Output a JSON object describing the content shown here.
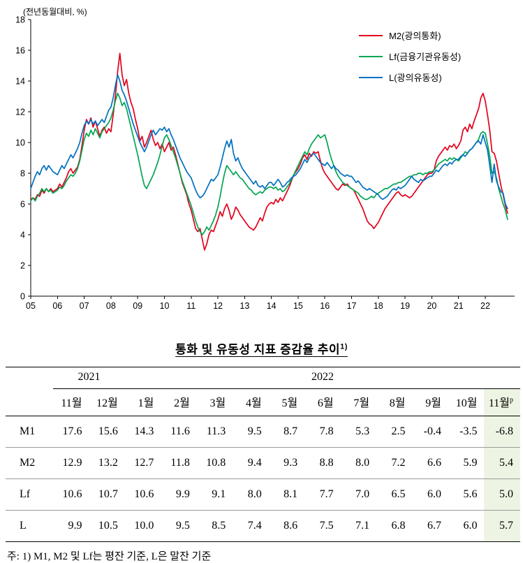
{
  "chart_data": {
    "type": "line",
    "title": "",
    "unit_label": "(전년동월대비, %)",
    "xlabel": "",
    "ylabel": "",
    "ylim": [
      0,
      18
    ],
    "y_ticks": [
      0,
      2,
      4,
      6,
      8,
      10,
      12,
      14,
      16,
      18
    ],
    "x_tick_labels": [
      "05",
      "06",
      "07",
      "08",
      "09",
      "10",
      "11",
      "12",
      "13",
      "14",
      "15",
      "16",
      "17",
      "18",
      "19",
      "20",
      "21",
      "22"
    ],
    "x_start_year": 2005,
    "points_per_year": 12,
    "grid": false,
    "legend_position": "top-right",
    "series": [
      {
        "name": "M2(광의통화)",
        "color": "#e2001a",
        "values": [
          6.3,
          6.4,
          6.3,
          6.6,
          6.5,
          6.9,
          6.7,
          7.0,
          6.8,
          7.0,
          6.8,
          6.9,
          7.0,
          7.3,
          7.1,
          7.4,
          7.7,
          8.1,
          8.3,
          8.0,
          8.2,
          8.4,
          8.9,
          9.8,
          10.8,
          11.5,
          11.2,
          11.6,
          11.0,
          11.4,
          10.9,
          10.4,
          10.8,
          11.0,
          10.6,
          10.9,
          10.7,
          11.8,
          13.0,
          14.6,
          15.8,
          14.4,
          13.7,
          14.1,
          13.2,
          12.6,
          12.2,
          11.5,
          10.9,
          10.1,
          10.4,
          9.7,
          10.0,
          10.4,
          10.8,
          10.2,
          9.8,
          10.0,
          9.6,
          9.9,
          9.4,
          9.7,
          10.0,
          9.5,
          9.7,
          9.2,
          8.6,
          8.0,
          7.4,
          7.0,
          6.6,
          6.0,
          5.6,
          5.0,
          4.4,
          4.2,
          4.4,
          3.7,
          3.0,
          3.4,
          4.0,
          4.3,
          4.2,
          4.6,
          5.0,
          5.5,
          5.2,
          5.7,
          6.0,
          5.6,
          5.0,
          5.3,
          5.8,
          5.6,
          5.3,
          5.1,
          4.9,
          4.7,
          4.5,
          4.4,
          4.3,
          4.5,
          4.8,
          5.1,
          4.9,
          5.4,
          5.8,
          6.0,
          6.1,
          6.0,
          6.3,
          6.1,
          6.4,
          6.2,
          6.5,
          6.8,
          7.1,
          7.5,
          7.9,
          8.1,
          8.3,
          8.6,
          9.0,
          9.2,
          8.9,
          9.3,
          9.1,
          9.4,
          9.3,
          9.4,
          8.8,
          8.3,
          8.0,
          7.8,
          7.6,
          7.4,
          7.2,
          7.0,
          6.9,
          7.1,
          7.3,
          7.2,
          7.3,
          7.1,
          7.0,
          6.9,
          6.6,
          6.3,
          6.0,
          5.7,
          5.3,
          4.9,
          4.7,
          4.6,
          4.4,
          4.6,
          4.8,
          5.1,
          5.4,
          5.7,
          5.9,
          6.1,
          6.3,
          6.5,
          6.7,
          6.8,
          6.6,
          6.5,
          6.6,
          6.5,
          6.4,
          6.5,
          6.7,
          6.9,
          7.1,
          7.3,
          7.5,
          7.7,
          7.9,
          8.0,
          8.0,
          8.2,
          8.8,
          9.1,
          9.3,
          9.5,
          9.7,
          9.5,
          9.8,
          9.7,
          9.9,
          9.6,
          9.8,
          10.1,
          10.8,
          11.0,
          10.7,
          11.2,
          10.9,
          11.4,
          11.8,
          12.2,
          12.9,
          13.2,
          12.7,
          11.8,
          10.8,
          9.4,
          9.3,
          8.8,
          8.0,
          7.2,
          6.6,
          5.9,
          5.4
        ]
      },
      {
        "name": "Lf(금융기관유동성)",
        "color": "#00a551",
        "values": [
          6.2,
          6.4,
          6.2,
          6.5,
          6.7,
          7.0,
          6.8,
          7.0,
          6.8,
          6.9,
          6.7,
          6.8,
          6.9,
          7.1,
          7.0,
          7.2,
          7.5,
          7.7,
          7.9,
          7.8,
          8.0,
          8.3,
          8.8,
          9.5,
          10.2,
          10.6,
          10.4,
          10.8,
          10.5,
          10.9,
          10.6,
          10.3,
          10.7,
          10.9,
          11.1,
          11.3,
          11.6,
          12.1,
          12.7,
          13.2,
          12.9,
          12.4,
          12.6,
          12.2,
          11.6,
          11.0,
          10.4,
          9.8,
          9.2,
          8.5,
          7.8,
          7.2,
          7.0,
          7.3,
          7.6,
          7.9,
          8.3,
          8.7,
          9.2,
          9.8,
          10.3,
          10.5,
          10.2,
          9.8,
          9.4,
          9.0,
          8.5,
          8.0,
          7.5,
          7.1,
          6.7,
          6.3,
          5.9,
          5.4,
          4.9,
          4.5,
          4.2,
          4.0,
          4.2,
          4.5,
          4.3,
          4.6,
          4.9,
          5.3,
          5.8,
          6.5,
          7.3,
          8.0,
          8.5,
          8.3,
          8.1,
          7.9,
          8.1,
          7.9,
          7.7,
          7.6,
          7.4,
          7.2,
          7.0,
          6.9,
          6.7,
          6.6,
          6.7,
          6.8,
          6.7,
          6.9,
          7.0,
          7.1,
          7.1,
          7.0,
          7.1,
          6.9,
          7.0,
          6.8,
          6.9,
          7.1,
          7.3,
          7.6,
          7.9,
          8.2,
          8.5,
          8.8,
          9.1,
          9.4,
          9.2,
          9.6,
          9.9,
          10.1,
          10.3,
          10.5,
          10.3,
          10.4,
          10.5,
          10.0,
          9.4,
          8.9,
          8.5,
          8.1,
          7.8,
          7.6,
          7.4,
          7.3,
          7.2,
          7.1,
          7.0,
          6.9,
          6.8,
          6.7,
          6.5,
          6.4,
          6.3,
          6.3,
          6.4,
          6.5,
          6.4,
          6.6,
          6.7,
          6.8,
          6.9,
          7.0,
          7.0,
          7.1,
          7.2,
          7.3,
          7.3,
          7.4,
          7.4,
          7.5,
          7.6,
          7.7,
          7.8,
          7.8,
          7.9,
          7.9,
          8.0,
          8.0,
          7.9,
          8.0,
          8.0,
          8.1,
          8.1,
          8.2,
          8.4,
          8.6,
          8.7,
          8.8,
          8.9,
          8.8,
          9.0,
          8.9,
          9.0,
          8.9,
          8.8,
          9.0,
          9.2,
          9.4,
          9.3,
          9.5,
          9.6,
          9.8,
          10.0,
          10.2,
          10.6,
          10.7,
          10.6,
          9.9,
          9.1,
          8.0,
          8.1,
          7.7,
          7.0,
          6.5,
          6.0,
          5.6,
          5.0
        ]
      },
      {
        "name": "L(광의유동성)",
        "color": "#0070c0",
        "values": [
          7.0,
          7.4,
          7.8,
          8.1,
          7.9,
          8.3,
          8.5,
          8.2,
          8.5,
          8.3,
          8.1,
          8.0,
          7.9,
          8.2,
          8.5,
          8.3,
          8.6,
          8.9,
          9.2,
          9.0,
          9.3,
          9.6,
          10.0,
          10.6,
          11.1,
          11.4,
          11.2,
          11.5,
          11.2,
          11.4,
          11.1,
          11.3,
          11.5,
          11.3,
          11.7,
          12.1,
          12.3,
          12.9,
          13.7,
          14.4,
          14.0,
          13.4,
          13.1,
          12.7,
          12.2,
          11.7,
          11.2,
          10.8,
          10.4,
          10.0,
          9.7,
          9.4,
          9.7,
          10.1,
          10.5,
          10.8,
          10.5,
          10.7,
          10.9,
          10.8,
          11.0,
          10.7,
          10.9,
          10.5,
          10.2,
          9.8,
          9.4,
          9.0,
          8.7,
          8.4,
          8.1,
          7.9,
          7.7,
          7.3,
          6.9,
          6.6,
          6.4,
          6.5,
          6.7,
          7.0,
          7.3,
          7.6,
          7.5,
          7.7,
          7.9,
          8.4,
          9.0,
          9.6,
          10.1,
          9.7,
          10.2,
          9.3,
          8.8,
          9.0,
          8.6,
          8.3,
          8.1,
          7.9,
          7.7,
          7.5,
          7.3,
          7.5,
          7.2,
          7.1,
          7.2,
          7.0,
          7.2,
          7.4,
          7.4,
          7.2,
          7.4,
          7.6,
          7.4,
          7.1,
          7.2,
          7.4,
          7.5,
          7.7,
          7.8,
          7.9,
          8.1,
          8.3,
          8.6,
          8.9,
          8.7,
          9.0,
          9.2,
          9.3,
          9.1,
          8.9,
          8.7,
          8.6,
          8.5,
          8.7,
          8.5,
          8.3,
          8.5,
          8.3,
          8.2,
          8.0,
          7.9,
          7.8,
          7.9,
          7.8,
          7.8,
          7.6,
          7.4,
          7.5,
          7.3,
          7.1,
          7.0,
          6.9,
          7.0,
          6.9,
          6.8,
          6.7,
          6.6,
          6.4,
          6.3,
          6.4,
          6.5,
          6.7,
          6.9,
          7.0,
          6.9,
          7.1,
          7.0,
          7.1,
          7.2,
          7.4,
          7.6,
          7.8,
          7.6,
          7.5,
          7.4,
          7.6,
          7.5,
          7.6,
          7.7,
          7.8,
          7.8,
          8.0,
          8.2,
          8.1,
          8.3,
          8.5,
          8.6,
          8.5,
          8.7,
          8.6,
          8.8,
          8.9,
          8.9,
          9.1,
          9.2,
          9.1,
          9.3,
          9.5,
          9.6,
          9.8,
          10.0,
          10.1,
          9.9,
          10.5,
          10.0,
          9.5,
          8.5,
          7.4,
          8.6,
          7.5,
          7.1,
          6.8,
          6.7,
          6.0,
          5.7
        ]
      }
    ]
  },
  "table": {
    "title": {
      "text": "통화 및 유동성 지표 증감율 추이",
      "sup": "1)"
    },
    "year_groups": [
      {
        "label": "2021",
        "span": 2
      },
      {
        "label": "2022",
        "span": 11
      }
    ],
    "months": [
      {
        "label": "11월"
      },
      {
        "label": "12월"
      },
      {
        "label": "1월"
      },
      {
        "label": "2월"
      },
      {
        "label": "3월"
      },
      {
        "label": "4월"
      },
      {
        "label": "5월"
      },
      {
        "label": "6월"
      },
      {
        "label": "7월"
      },
      {
        "label": "8월"
      },
      {
        "label": "9월"
      },
      {
        "label": "10월"
      },
      {
        "label": "11월",
        "sup": "p",
        "highlight": true
      }
    ],
    "rows": [
      {
        "label": "M1",
        "values": [
          "17.6",
          "15.6",
          "14.3",
          "11.6",
          "11.3",
          "9.5",
          "8.7",
          "7.8",
          "5.3",
          "2.5",
          "-0.4",
          "-3.5",
          "-6.8"
        ]
      },
      {
        "label": "M2",
        "values": [
          "12.9",
          "13.2",
          "12.7",
          "11.8",
          "10.8",
          "9.4",
          "9.3",
          "8.8",
          "8.0",
          "7.2",
          "6.6",
          "5.9",
          "5.4"
        ]
      },
      {
        "label": "Lf",
        "values": [
          "10.6",
          "10.7",
          "10.6",
          "9.9",
          "9.1",
          "8.0",
          "8.1",
          "7.7",
          "7.0",
          "6.5",
          "6.0",
          "5.6",
          "5.0"
        ]
      },
      {
        "label": "L",
        "values": [
          "9.9",
          "10.5",
          "10.0",
          "9.5",
          "8.5",
          "7.4",
          "8.6",
          "7.5",
          "7.1",
          "6.8",
          "6.7",
          "6.0",
          "5.7"
        ]
      }
    ],
    "highlight_color": "#edf4e3",
    "footnote": "주: 1) M1, M2 및 Lf는 평잔 기준, L은 말잔 기준"
  }
}
